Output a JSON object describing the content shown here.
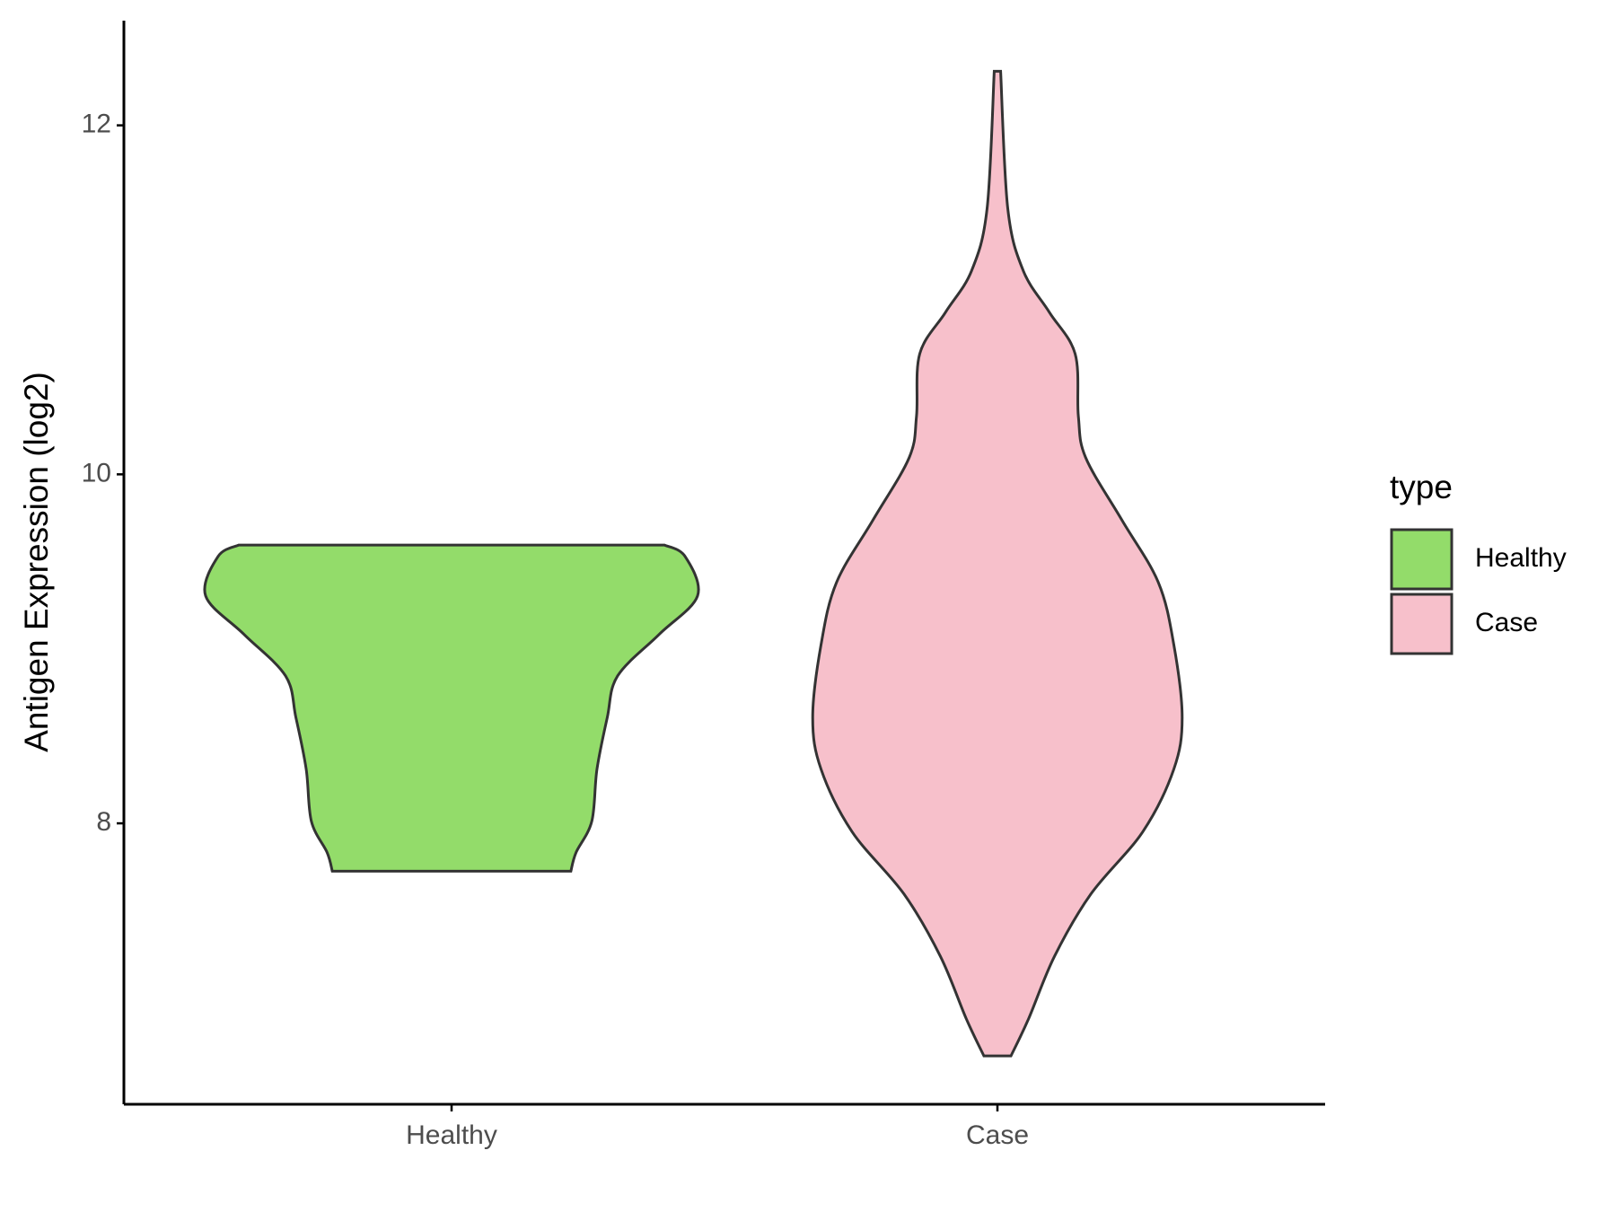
{
  "chart_data": {
    "type": "violin",
    "y_label": "Antigen Expression (log2)",
    "legend_title": "type",
    "categories": [
      "Healthy",
      "Case"
    ],
    "series": [
      {
        "name": "Healthy",
        "color": "#93dc6a",
        "y": [
          9.595,
          9.53,
          9.304,
          9.083,
          8.845,
          8.607,
          8.31,
          8.012,
          7.833,
          7.726
        ],
        "density": [
          0.865,
          0.949,
          1,
          0.844,
          0.675,
          0.633,
          0.591,
          0.57,
          0.506,
          0.485
        ]
      },
      {
        "name": "Case",
        "color": "#f7c0cb",
        "y": [
          12.31,
          11.524,
          11.167,
          10.929,
          10.69,
          10.333,
          10.095,
          9.738,
          9.381,
          9.024,
          8.607,
          8.31,
          7.952,
          7.595,
          7.238,
          6.881,
          6.667
        ],
        "density": [
          0.013,
          0.042,
          0.105,
          0.211,
          0.316,
          0.329,
          0.359,
          0.506,
          0.654,
          0.717,
          0.751,
          0.717,
          0.591,
          0.38,
          0.232,
          0.127,
          0.055
        ]
      }
    ],
    "ylim": [
      6.39,
      12.6
    ],
    "yticks": [
      8,
      10,
      12
    ],
    "legend_position": "right"
  }
}
